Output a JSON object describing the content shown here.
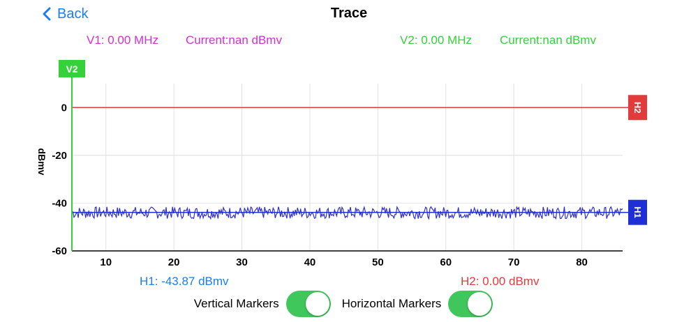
{
  "nav": {
    "back_label": "Back",
    "title": "Trace"
  },
  "readouts": {
    "v1": "V1: 0.00 MHz",
    "v1_current": "Current:nan dBmv",
    "v2": "V2: 0.00 MHz",
    "v2_current": "Current:nan dBmv",
    "h1": "H1: -43.87 dBmv",
    "h2": "H2: 0.00 dBmv"
  },
  "toggles": {
    "vertical_label": "Vertical Markers",
    "vertical_on": true,
    "horizontal_label": "Horizontal Markers",
    "horizontal_on": true
  },
  "colors": {
    "accent": "#1a7ef0",
    "v1": "#d42fd1",
    "v2": "#34d13a",
    "h1": "#1f2fd6",
    "h2": "#e23b3b",
    "trace": "#2f2fd0",
    "toggle_on": "#3fc75c"
  },
  "chart_data": {
    "type": "line",
    "ylabel": "dBmv",
    "xlabel": "",
    "xlim": [
      5,
      86
    ],
    "ylim": [
      -60,
      10
    ],
    "x_ticks": [
      10,
      20,
      30,
      40,
      50,
      60,
      70,
      80
    ],
    "y_ticks": [
      0,
      -20,
      -40,
      -60
    ],
    "grid": true,
    "series": [
      {
        "x_start": 5,
        "x_end": 86,
        "mean": -44,
        "amplitude": 2.5
      }
    ],
    "markers": {
      "v2": {
        "label": "V2",
        "x": 5
      },
      "h1": {
        "label": "H1",
        "y": -43.87
      },
      "h2": {
        "label": "H2",
        "y": 0
      }
    }
  }
}
